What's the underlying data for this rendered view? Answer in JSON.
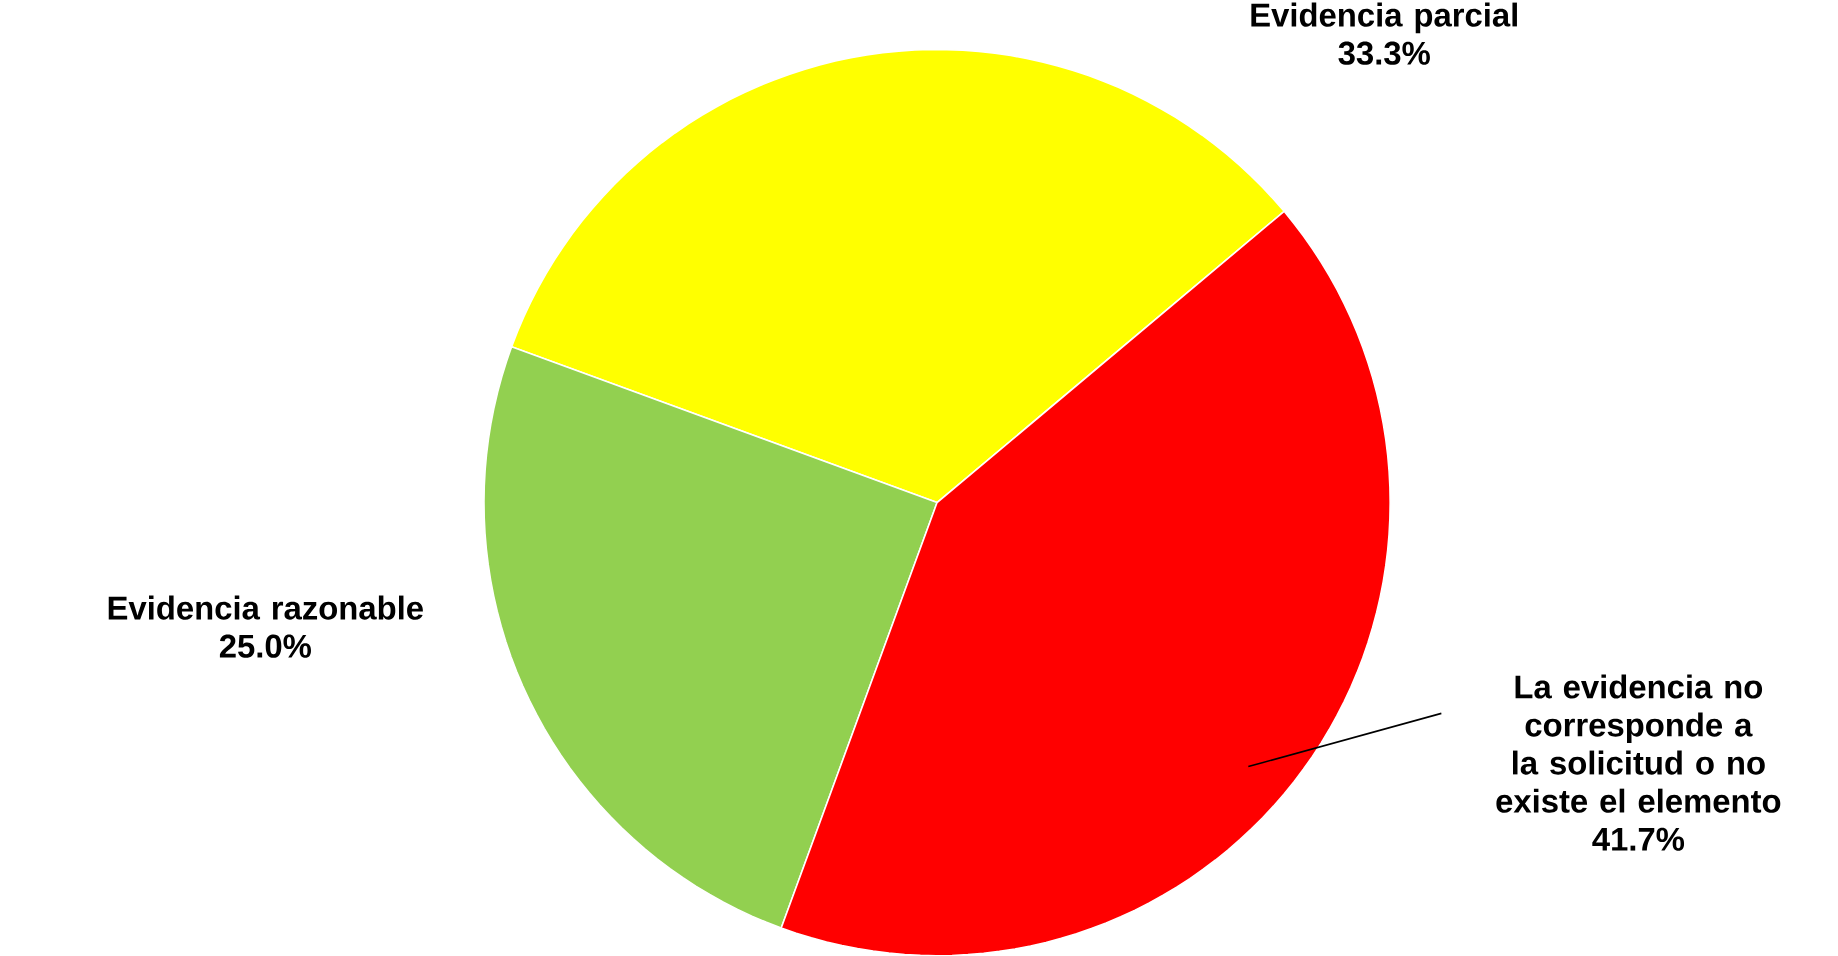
{
  "chart_data": {
    "type": "pie",
    "categories": [
      "Evidencia parcial",
      "Evidencia razonable",
      "La evidencia no corresponde a la solicitud  o no existe el elemento"
    ],
    "values": [
      33.3,
      25.0,
      41.7
    ],
    "colors": [
      "#ffff00",
      "#92d050",
      "#ff0000"
    ],
    "value_labels": [
      "33.3%",
      "25.0%",
      "41.7%"
    ]
  }
}
